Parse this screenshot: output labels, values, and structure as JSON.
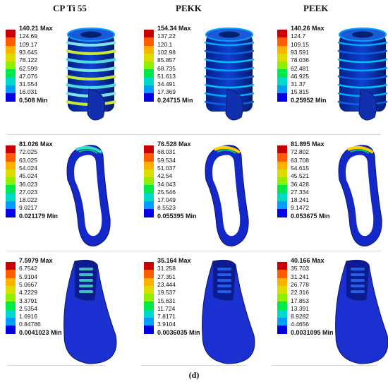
{
  "columns": [
    "CP Ti 55",
    "PEKK",
    "PEEK"
  ],
  "footer_label": "(d)",
  "colors": [
    "#c80000",
    "#ff5b00",
    "#ffb100",
    "#dcdc00",
    "#8ef000",
    "#00e84a",
    "#00d8c8",
    "#009cff",
    "#0000e0"
  ],
  "rows": [
    {
      "name": "implant",
      "panels": [
        {
          "max": "140.21 Max",
          "ticks": [
            "124.69",
            "109.17",
            "93.645",
            "78.122",
            "62.599",
            "47.076",
            "31.554",
            "16.031"
          ],
          "min": "0.508 Min"
        },
        {
          "max": "154.34 Max",
          "ticks": [
            "137.22",
            "120.1",
            "102.98",
            "85.857",
            "68.735",
            "51.613",
            "34.491",
            "17.369"
          ],
          "min": "0.24715 Min"
        },
        {
          "max": "140.26 Max",
          "ticks": [
            "124.7",
            "109.15",
            "93.591",
            "78.036",
            "62.481",
            "46.925",
            "31.37",
            "15.815"
          ],
          "min": "0.25952 Min"
        }
      ]
    },
    {
      "name": "bone-section",
      "panels": [
        {
          "max": "81.026 Max",
          "ticks": [
            "72.025",
            "63.025",
            "54.024",
            "45.024",
            "36.023",
            "27.023",
            "18.022",
            "9.0217"
          ],
          "min": "0.021179 Min"
        },
        {
          "max": "76.528 Max",
          "ticks": [
            "68.031",
            "59.534",
            "51.037",
            "42.54",
            "34.043",
            "25.546",
            "17.049",
            "8.5523"
          ],
          "min": "0.055395 Min"
        },
        {
          "max": "81.895 Max",
          "ticks": [
            "72.802",
            "63.708",
            "54.615",
            "45.521",
            "36.428",
            "27.334",
            "18.241",
            "9.1472"
          ],
          "min": "0.053675 Min"
        }
      ]
    },
    {
      "name": "bone-block",
      "panels": [
        {
          "max": "7.5979 Max",
          "ticks": [
            "6.7542",
            "5.9104",
            "5.0667",
            "4.2229",
            "3.3791",
            "2.5354",
            "1.6916",
            "0.84786"
          ],
          "min": "0.0041023 Min"
        },
        {
          "max": "35.164 Max",
          "ticks": [
            "31.258",
            "27.351",
            "23.444",
            "19.537",
            "15.631",
            "11.724",
            "7.8171",
            "3.9104"
          ],
          "min": "0.0036035 Min"
        },
        {
          "max": "40.166 Max",
          "ticks": [
            "35.703",
            "31.241",
            "26.778",
            "22.316",
            "17.853",
            "13.391",
            "8.9282",
            "4.4656"
          ],
          "min": "0.0031095 Min"
        }
      ]
    }
  ]
}
